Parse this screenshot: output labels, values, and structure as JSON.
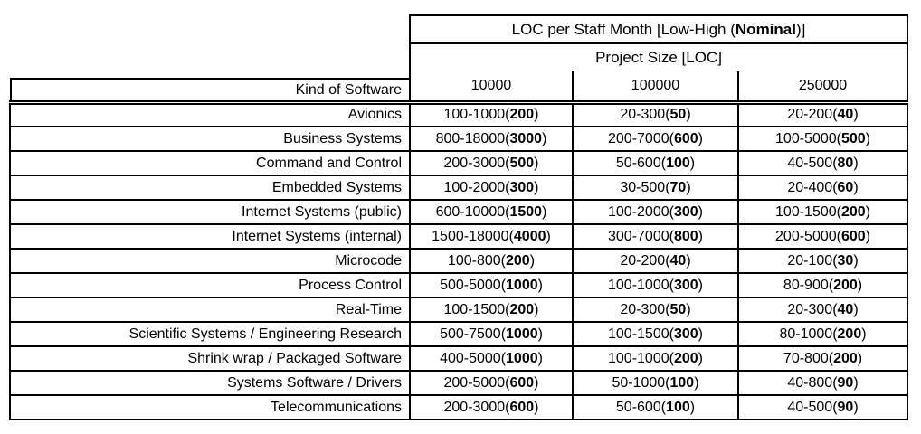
{
  "chart_data": {
    "type": "table",
    "title": {
      "pre": "LOC per Staff Month [Low-High (",
      "bold": "Nominal",
      "post": ")]"
    },
    "subtitle": "Project Size [LOC]",
    "row_label_header": "Kind of Software",
    "size_columns": [
      "10000",
      "100000",
      "250000"
    ],
    "punct": {
      "open": "(",
      "close": ")"
    },
    "rows": [
      {
        "label": "Avionics",
        "cells": [
          {
            "range": "100-1000",
            "nominal": "200"
          },
          {
            "range": "20-300",
            "nominal": "50"
          },
          {
            "range": "20-200",
            "nominal": "40"
          }
        ]
      },
      {
        "label": "Business Systems",
        "cells": [
          {
            "range": "800-18000",
            "nominal": "3000"
          },
          {
            "range": "200-7000",
            "nominal": "600"
          },
          {
            "range": "100-5000",
            "nominal": "500"
          }
        ]
      },
      {
        "label": "Command and Control",
        "cells": [
          {
            "range": "200-3000",
            "nominal": "500"
          },
          {
            "range": "50-600",
            "nominal": "100"
          },
          {
            "range": "40-500",
            "nominal": "80"
          }
        ]
      },
      {
        "label": "Embedded Systems",
        "cells": [
          {
            "range": "100-2000",
            "nominal": "300"
          },
          {
            "range": "30-500",
            "nominal": "70"
          },
          {
            "range": "20-400",
            "nominal": "60"
          }
        ]
      },
      {
        "label": "Internet Systems (public)",
        "cells": [
          {
            "range": "600-10000",
            "nominal": "1500"
          },
          {
            "range": "100-2000",
            "nominal": "300"
          },
          {
            "range": "100-1500",
            "nominal": "200"
          }
        ]
      },
      {
        "label": "Internet Systems (internal)",
        "cells": [
          {
            "range": "1500-18000",
            "nominal": "4000"
          },
          {
            "range": "300-7000",
            "nominal": "800"
          },
          {
            "range": "200-5000",
            "nominal": "600"
          }
        ]
      },
      {
        "label": "Microcode",
        "cells": [
          {
            "range": "100-800",
            "nominal": "200"
          },
          {
            "range": "20-200",
            "nominal": "40"
          },
          {
            "range": "20-100",
            "nominal": "30"
          }
        ]
      },
      {
        "label": "Process Control",
        "cells": [
          {
            "range": "500-5000",
            "nominal": "1000"
          },
          {
            "range": "100-1000",
            "nominal": "300"
          },
          {
            "range": "80-900",
            "nominal": "200"
          }
        ]
      },
      {
        "label": "Real-Time",
        "cells": [
          {
            "range": "100-1500",
            "nominal": "200"
          },
          {
            "range": "20-300",
            "nominal": "50"
          },
          {
            "range": "20-300",
            "nominal": "40"
          }
        ]
      },
      {
        "label": "Scientific Systems / Engineering Research",
        "cells": [
          {
            "range": "500-7500",
            "nominal": "1000"
          },
          {
            "range": "100-1500",
            "nominal": "300"
          },
          {
            "range": "80-1000",
            "nominal": "200"
          }
        ]
      },
      {
        "label": "Shrink wrap / Packaged Software",
        "cells": [
          {
            "range": "400-5000",
            "nominal": "1000"
          },
          {
            "range": "100-1000",
            "nominal": "200"
          },
          {
            "range": "70-800",
            "nominal": "200"
          }
        ]
      },
      {
        "label": "Systems Software / Drivers",
        "cells": [
          {
            "range": "200-5000",
            "nominal": "600"
          },
          {
            "range": "50-1000",
            "nominal": "100"
          },
          {
            "range": "40-800",
            "nominal": "90"
          }
        ]
      },
      {
        "label": "Telecommunications",
        "cells": [
          {
            "range": "200-3000",
            "nominal": "600"
          },
          {
            "range": "50-600",
            "nominal": "100"
          },
          {
            "range": "40-500",
            "nominal": "90"
          }
        ]
      }
    ],
    "layout": {
      "legend": "none",
      "grid": "full-borders"
    },
    "colors": {
      "border": "#000000",
      "text": "#000000",
      "background": "#ffffff"
    }
  }
}
